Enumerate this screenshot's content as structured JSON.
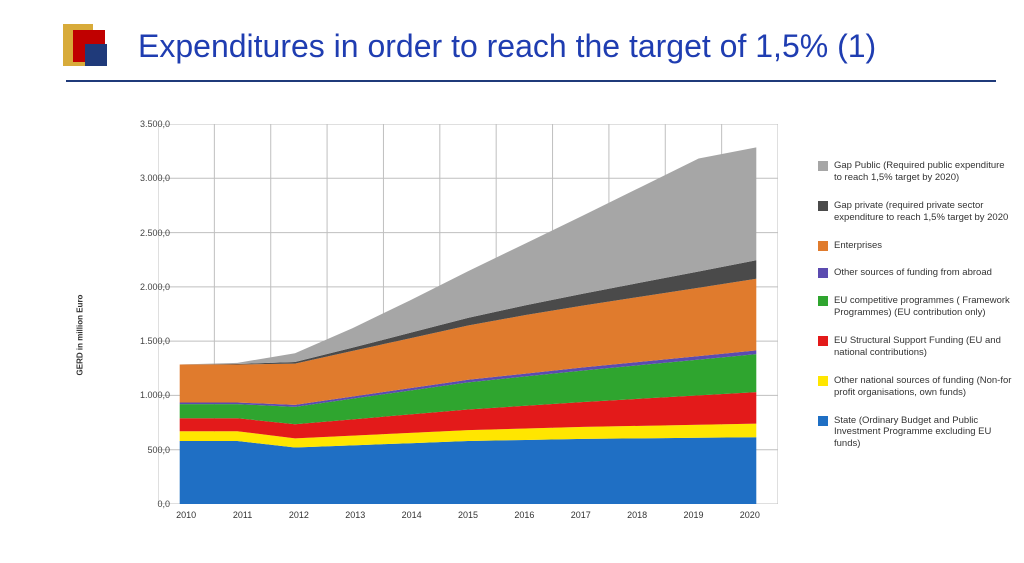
{
  "title": "Expenditures in order to reach the target of  1,5% (1)",
  "chart": {
    "type": "stacked-area",
    "ylabel": "GERD in million Euro",
    "ylim": [
      0,
      3500
    ],
    "ytick_step": 500,
    "yticks": [
      "0,0",
      "500,0",
      "1.000,0",
      "1.500,0",
      "2.000,0",
      "2.500,0",
      "3.000,0",
      "3.500,0"
    ],
    "categories": [
      "2010",
      "2011",
      "2012",
      "2013",
      "2014",
      "2015",
      "2016",
      "2017",
      "2018",
      "2019",
      "2020"
    ],
    "background_color": "#ffffff",
    "grid_color": "#bfbfbf",
    "series_order_bottom_to_top": [
      "state",
      "other_national",
      "eu_structural",
      "eu_competitive",
      "other_abroad",
      "enterprises",
      "gap_private",
      "gap_public"
    ],
    "series": {
      "state": {
        "label": "State (Ordinary Budget and Public Investment Programme excluding EU funds)",
        "color": "#1f6fc4",
        "values": [
          580,
          580,
          520,
          540,
          560,
          580,
          590,
          600,
          605,
          610,
          615
        ]
      },
      "other_national": {
        "label": "Other national sources of funding (Non-for profit organisations, own funds)",
        "color": "#ffe600",
        "values": [
          90,
          90,
          85,
          90,
          95,
          100,
          105,
          110,
          115,
          120,
          125
        ]
      },
      "eu_structural": {
        "label": "EU Structural Support Funding (EU and national contributions)",
        "color": "#e31a1a",
        "values": [
          120,
          120,
          130,
          150,
          170,
          190,
          210,
          230,
          250,
          270,
          290
        ]
      },
      "eu_competitive": {
        "label": "EU competitive programmes ( Framework Programmes) (EU contribution only)",
        "color": "#2fa52f",
        "values": [
          130,
          130,
          160,
          190,
          220,
          250,
          270,
          290,
          310,
          330,
          350
        ]
      },
      "other_abroad": {
        "label": "Other sources of funding from abroad",
        "color": "#5b4bb0",
        "values": [
          15,
          15,
          18,
          20,
          22,
          24,
          26,
          28,
          30,
          32,
          35
        ]
      },
      "enterprises": {
        "label": "Enterprises",
        "color": "#e07b2d",
        "values": [
          350,
          350,
          380,
          420,
          460,
          500,
          540,
          570,
          600,
          630,
          660
        ]
      },
      "gap_private": {
        "label": "Gap private (required private sector expenditure to reach 1,5% target by 2020",
        "color": "#4a4a4a",
        "values": [
          0,
          5,
          15,
          30,
          50,
          70,
          90,
          110,
          130,
          150,
          170
        ]
      },
      "gap_public": {
        "label": "Gap Public (Required public expenditure to reach 1,5% target by 2020)",
        "color": "#a6a6a6",
        "values": [
          0,
          10,
          80,
          180,
          300,
          430,
          570,
          720,
          880,
          1040,
          1040
        ]
      }
    }
  },
  "legend_order": [
    "gap_public",
    "gap_private",
    "enterprises",
    "other_abroad",
    "eu_competitive",
    "eu_structural",
    "other_national",
    "state"
  ]
}
